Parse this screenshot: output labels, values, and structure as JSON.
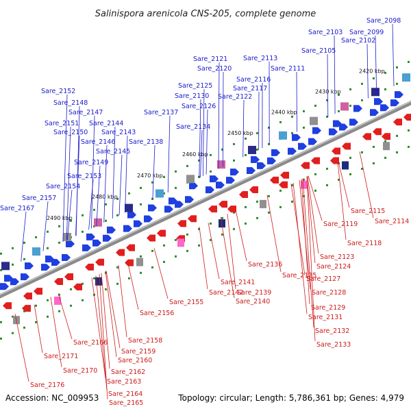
{
  "title": "Salinispora arenicola CNS-205, complete genome",
  "footer": {
    "accession": "Accession: NC_009953",
    "summary": "Topology: circular; Length: 5,786,361 bp; Genes: 4,979"
  },
  "colors": {
    "forward_label": "#1a1acc",
    "reverse_label": "#cc1a1a",
    "forward_gene": "#1f3fe0",
    "reverse_gene": "#e01f1f",
    "backbone": "#8a8a8a",
    "tick": "#2e8b2e"
  },
  "kbp_marks": [
    "2420 kbp",
    "2430 kbp",
    "2440 kbp",
    "2450 kbp",
    "2460 kbp",
    "2470 kbp",
    "2480 kbp",
    "2490 kbp"
  ],
  "forward_labels": [
    "Sare_2098",
    "Sare_2099",
    "Sare_2102",
    "Sare_2103",
    "Sare_2105",
    "Sare_2111",
    "Sare_2113",
    "Sare_2116",
    "Sare_2117",
    "Sare_2120",
    "Sare_2121",
    "Sare_2122",
    "Sare_2125",
    "Sare_2126",
    "Sare_2130",
    "Sare_2134",
    "Sare_2137",
    "Sare_2138",
    "Sare_2143",
    "Sare_2144",
    "Sare_2145",
    "Sare_2146",
    "Sare_2147",
    "Sare_2148",
    "Sare_2149",
    "Sare_2150",
    "Sare_2151",
    "Sare_2152",
    "Sare_2153",
    "Sare_2154",
    "Sare_2157",
    "Sare_2167"
  ],
  "reverse_labels": [
    "Sare_2114",
    "Sare_2115",
    "Sare_2118",
    "Sare_2119",
    "Sare_2123",
    "Sare_2124",
    "Sare_2127",
    "Sare_2128",
    "Sare_2129",
    "Sare_2131",
    "Sare_2132",
    "Sare_2133",
    "Sare_2135",
    "Sare_2136",
    "Sare_2139",
    "Sare_2140",
    "Sare_2141",
    "Sare_2142",
    "Sare_2155",
    "Sare_2156",
    "Sare_2158",
    "Sare_2159",
    "Sare_2160",
    "Sare_2162",
    "Sare_2163",
    "Sare_2164",
    "Sare_2165",
    "Sare_2166",
    "Sare_2170",
    "Sare_2171",
    "Sare_2176"
  ]
}
